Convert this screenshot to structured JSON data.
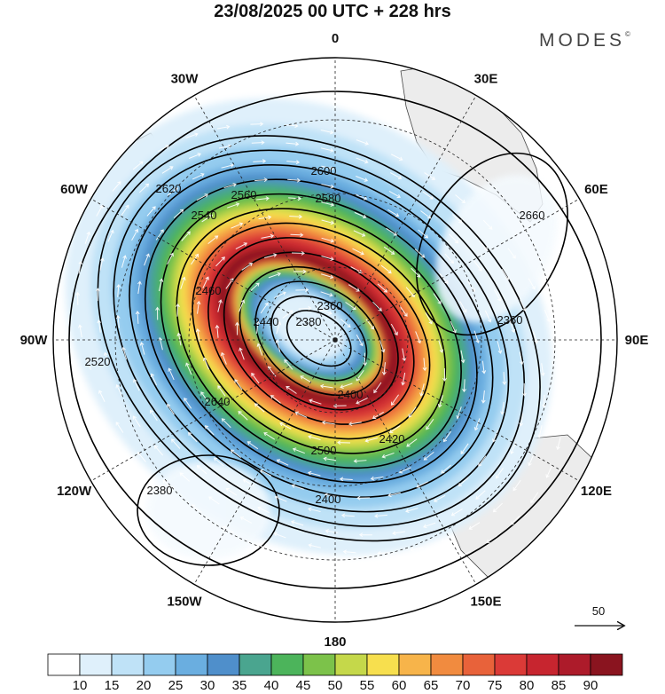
{
  "title": "23/08/2025  00 UTC  + 228 hrs",
  "brand": "MODES",
  "brand_mark": "©",
  "longitude_labels": [
    {
      "text": "0",
      "lon": 0
    },
    {
      "text": "30E",
      "lon": 30
    },
    {
      "text": "60E",
      "lon": 60
    },
    {
      "text": "90E",
      "lon": 90
    },
    {
      "text": "120E",
      "lon": 120
    },
    {
      "text": "150E",
      "lon": 150
    },
    {
      "text": "180",
      "lon": 180
    },
    {
      "text": "150W",
      "lon": 210
    },
    {
      "text": "120W",
      "lon": 240
    },
    {
      "text": "90W",
      "lon": 270
    },
    {
      "text": "60W",
      "lon": 300
    },
    {
      "text": "30W",
      "lon": 330
    }
  ],
  "contour_labels": [
    "2360",
    "2380",
    "2400",
    "2420",
    "2440",
    "2460",
    "2500",
    "2520",
    "2540",
    "2560",
    "2580",
    "2600",
    "2620",
    "2640",
    "2660"
  ],
  "vector_reference": {
    "value": "50"
  },
  "colorbar": {
    "ticks": [
      "10",
      "15",
      "20",
      "25",
      "30",
      "35",
      "40",
      "45",
      "50",
      "55",
      "60",
      "65",
      "70",
      "75",
      "80",
      "85",
      "90"
    ],
    "colors": [
      "#ffffff",
      "#dff0fb",
      "#bfe2f7",
      "#94ccef",
      "#6aaee0",
      "#4f8fcb",
      "#4aa58f",
      "#4cb45b",
      "#7cc24a",
      "#c5d84a",
      "#f7df4e",
      "#f7b44a",
      "#f18b3f",
      "#e8623a",
      "#db3a37",
      "#c7252f",
      "#ad1b2a",
      "#8a141f"
    ]
  }
}
